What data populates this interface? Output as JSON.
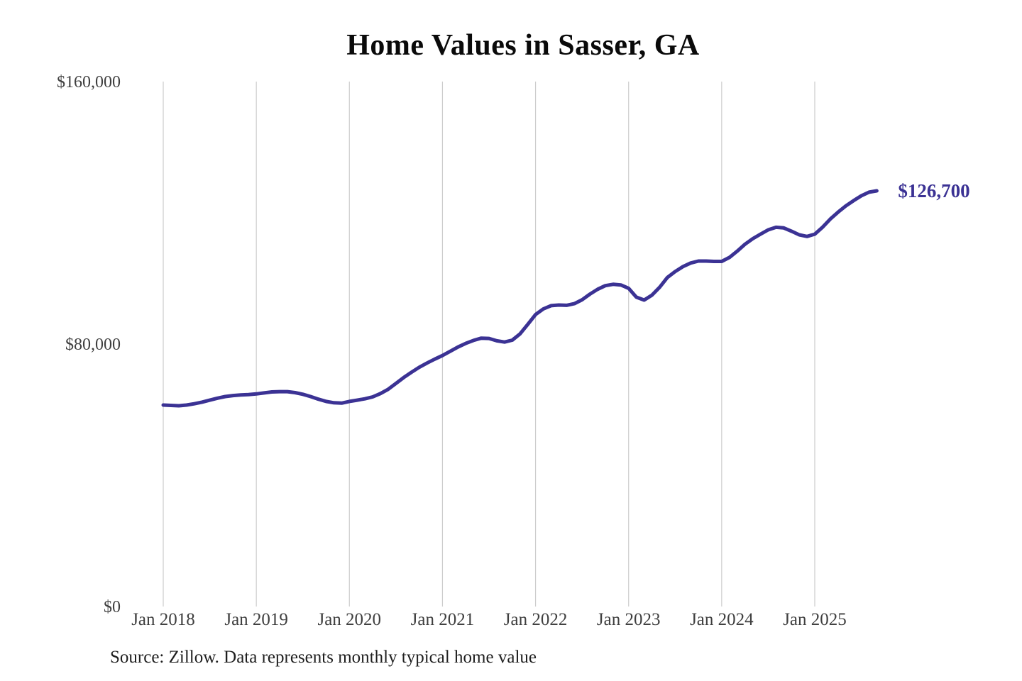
{
  "title": "Home Values in Sasser, GA",
  "source_note": "Source: Zillow. Data represents monthly typical home value",
  "end_label": "$126,700",
  "colors": {
    "line": "#3b3294",
    "grid": "#cccccc",
    "title_text": "#0a0a0a",
    "axis_text": "#3f3f3f",
    "source_text": "#1f1f1f",
    "end_label_text": "#3b3294",
    "background": "#ffffff"
  },
  "chart_data": {
    "type": "line",
    "title": "Home Values in Sasser, GA",
    "xlabel": "",
    "ylabel": "",
    "x_tick_labels": [
      "Jan 2018",
      "Jan 2019",
      "Jan 2020",
      "Jan 2021",
      "Jan 2022",
      "Jan 2023",
      "Jan 2024",
      "Jan 2025"
    ],
    "y_ticks": [
      {
        "label": "$0",
        "value": 0
      },
      {
        "label": "$80,000",
        "value": 80000
      },
      {
        "label": "$160,000",
        "value": 160000
      }
    ],
    "ylim": [
      0,
      160000
    ],
    "grid": "vertical-only",
    "legend": "none",
    "series": [
      {
        "name": "Monthly typical home value",
        "start_month": "Jan 2018",
        "end_month": "Sep 2025",
        "end_value": 126700,
        "monthly_values": [
          61400,
          61300,
          61200,
          61400,
          61800,
          62300,
          62900,
          63500,
          64000,
          64300,
          64500,
          64600,
          64800,
          65100,
          65400,
          65500,
          65500,
          65200,
          64700,
          64000,
          63200,
          62500,
          62100,
          62000,
          62500,
          62900,
          63300,
          63900,
          64900,
          66200,
          68000,
          69800,
          71400,
          72900,
          74200,
          75400,
          76500,
          77800,
          79100,
          80200,
          81100,
          81800,
          81700,
          81000,
          80600,
          81200,
          83100,
          86000,
          89000,
          90700,
          91700,
          91900,
          91800,
          92300,
          93500,
          95200,
          96700,
          97800,
          98200,
          98000,
          97000,
          94300,
          93400,
          94900,
          97300,
          100300,
          102100,
          103600,
          104700,
          105300,
          105300,
          105200,
          105200,
          106400,
          108300,
          110400,
          112100,
          113500,
          114800,
          115600,
          115400,
          114400,
          113300,
          112800,
          113500,
          115600,
          118100,
          120200,
          122100,
          123700,
          125200,
          126300,
          126700
        ]
      }
    ]
  }
}
